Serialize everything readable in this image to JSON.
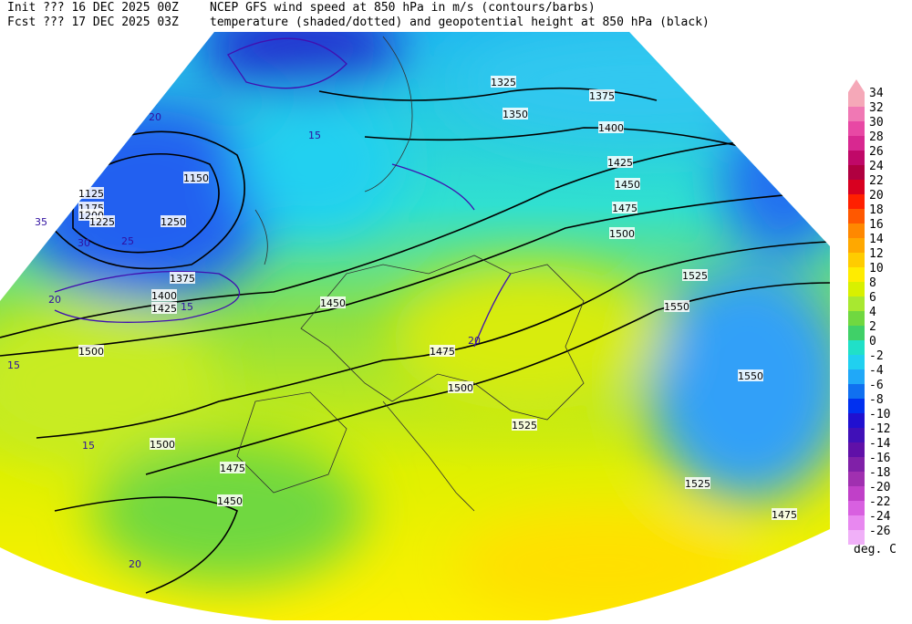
{
  "header": {
    "init": "Init  ??? 16 DEC 2025 00Z",
    "fcst": "Fcst ??? 17 DEC 2025 03Z",
    "title1": "NCEP GFS wind speed at 850 hPa in m/s (contours/barbs)",
    "title2": "temperature (shaded/dotted) and geopotential height at 850 hPa (black)"
  },
  "map": {
    "height_labels": [
      "1125",
      "1150",
      "1175",
      "1200",
      "1225",
      "1250",
      "1325",
      "1350",
      "1375",
      "1400",
      "1425",
      "1450",
      "1475",
      "1500",
      "1525",
      "1550",
      "1375",
      "1400",
      "1425",
      "1450",
      "1475",
      "1500",
      "1500",
      "1525",
      "1550",
      "1475",
      "1450",
      "1500",
      "1525",
      "1475"
    ],
    "wind_labels": [
      "20",
      "15",
      "25",
      "30",
      "35",
      "20",
      "15",
      "20",
      "15",
      "20",
      "15"
    ]
  },
  "legend": {
    "units": "deg. C",
    "entries": [
      {
        "value": 34,
        "color": "#f5a8b8"
      },
      {
        "value": 32,
        "color": "#f078b4"
      },
      {
        "value": 30,
        "color": "#e848a4"
      },
      {
        "value": 28,
        "color": "#d82890"
      },
      {
        "value": 26,
        "color": "#c00868"
      },
      {
        "value": 24,
        "color": "#b00040"
      },
      {
        "value": 22,
        "color": "#d80020"
      },
      {
        "value": 20,
        "color": "#ff2000"
      },
      {
        "value": 18,
        "color": "#ff5800"
      },
      {
        "value": 16,
        "color": "#ff8800"
      },
      {
        "value": 14,
        "color": "#ffa800"
      },
      {
        "value": 12,
        "color": "#ffcc00"
      },
      {
        "value": 10,
        "color": "#ffec00"
      },
      {
        "value": 8,
        "color": "#d8f000"
      },
      {
        "value": 6,
        "color": "#a8e830"
      },
      {
        "value": 4,
        "color": "#70d840"
      },
      {
        "value": 2,
        "color": "#40d068"
      },
      {
        "value": 0,
        "color": "#20e0c8"
      },
      {
        "value": -2,
        "color": "#20d0f0"
      },
      {
        "value": -4,
        "color": "#20a8f8"
      },
      {
        "value": -6,
        "color": "#1070f0"
      },
      {
        "value": -8,
        "color": "#0030f0"
      },
      {
        "value": -10,
        "color": "#2010d0"
      },
      {
        "value": -12,
        "color": "#4010b8"
      },
      {
        "value": -14,
        "color": "#6010a8"
      },
      {
        "value": -16,
        "color": "#8020a8"
      },
      {
        "value": -18,
        "color": "#a030b0"
      },
      {
        "value": -20,
        "color": "#c040c8"
      },
      {
        "value": -22,
        "color": "#d860e0"
      },
      {
        "value": -24,
        "color": "#e888f0"
      },
      {
        "value": -26,
        "color": "#f0b0f8"
      }
    ]
  }
}
